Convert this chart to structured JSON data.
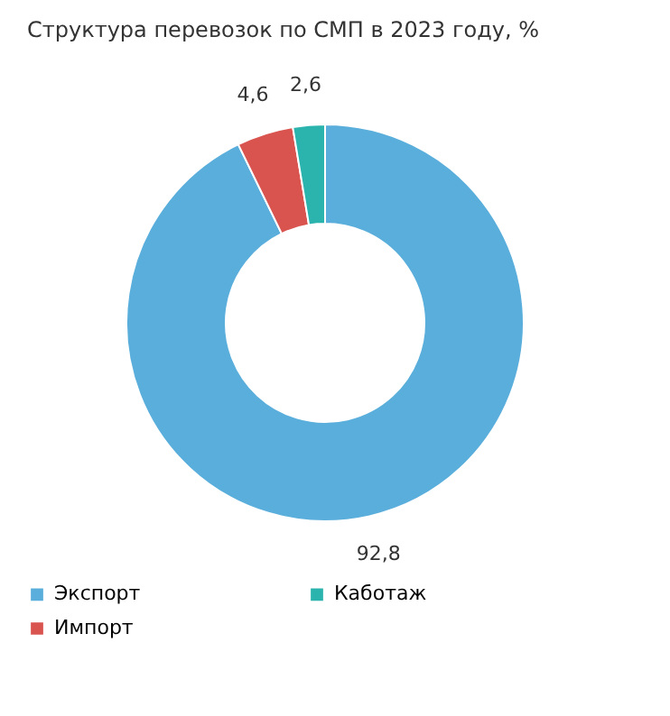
{
  "chart_data": {
    "type": "donut",
    "title": "Структура перевозок по СМП в 2023 году,\n%",
    "categories": [
      "Экспорт",
      "Импорт",
      "Каботаж"
    ],
    "values": [
      92.8,
      4.6,
      2.6
    ],
    "colors": [
      "#5aaedb",
      "#d9534f",
      "#2bb3ad"
    ],
    "value_labels": [
      "92,8",
      "4,6",
      "2,6"
    ],
    "legend": "bottom left"
  }
}
